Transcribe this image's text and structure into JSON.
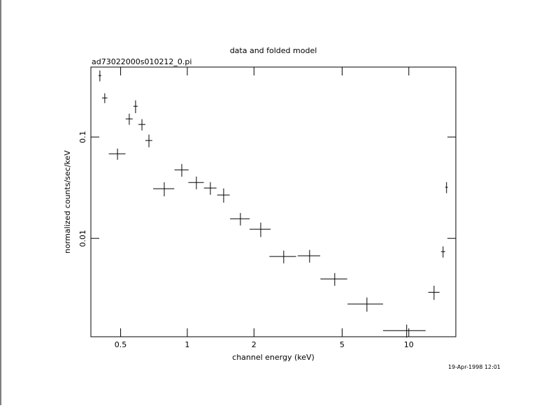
{
  "chart_data": {
    "type": "scatter",
    "title": "data and folded model",
    "subtitle": "ad73022000s010212_0.pi",
    "x_label": "channel energy (keV)",
    "y_label": "normalized counts/sec/keV",
    "timestamp": "19-Apr-1998 12:01",
    "log_x": true,
    "log_y": true,
    "color": "#000000",
    "xlim": [
      0.367,
      16.3
    ],
    "ylim": [
      0.00107,
      0.49
    ],
    "xticks": [
      0.5,
      1,
      2,
      5,
      10
    ],
    "yticks": [
      0.01,
      0.1
    ],
    "x": [
      0.403,
      0.424,
      0.484,
      0.547,
      0.584,
      0.624,
      0.671,
      0.787,
      0.944,
      1.099,
      1.271,
      1.459,
      1.737,
      2.145,
      2.724,
      3.565,
      4.63,
      6.47,
      9.78,
      13.0,
      14.28,
      14.8
    ],
    "xerr": [
      0.006,
      0.012,
      0.042,
      0.02,
      0.013,
      0.023,
      0.024,
      0.086,
      0.069,
      0.088,
      0.083,
      0.095,
      0.177,
      0.234,
      0.376,
      0.414,
      0.64,
      1.18,
      2.13,
      0.76,
      0.31,
      0.2
    ],
    "values": [
      0.404,
      0.243,
      0.0683,
      0.151,
      0.201,
      0.133,
      0.0924,
      0.0309,
      0.0474,
      0.0356,
      0.0314,
      0.0268,
      0.0156,
      0.0123,
      0.00662,
      0.00673,
      0.00398,
      0.00225,
      0.00123,
      0.00294,
      0.0074,
      0.0319
    ],
    "yerr": [
      0.05,
      0.027,
      0.0087,
      0.019,
      0.029,
      0.017,
      0.0132,
      0.0049,
      0.0068,
      0.0051,
      0.0045,
      0.0043,
      0.0022,
      0.002,
      0.00095,
      0.00096,
      0.00057,
      0.00036,
      0.00018,
      0.00047,
      0.00094,
      0.004
    ]
  }
}
